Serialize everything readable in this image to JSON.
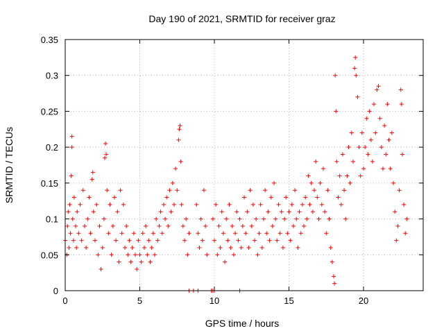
{
  "chart_data": {
    "type": "scatter",
    "title": "Day 190 of 2021, SRMTID for receiver graz",
    "xlabel": "GPS time / hours",
    "ylabel": "SRMTID / TECUs",
    "xlim": [
      0,
      24
    ],
    "ylim": [
      0,
      0.35
    ],
    "x_ticks": [
      0,
      5,
      10,
      15,
      20
    ],
    "x_tick_labels": [
      "0",
      "5",
      "10",
      "15",
      "20"
    ],
    "y_ticks": [
      0,
      0.05,
      0.1,
      0.15,
      0.2,
      0.25,
      0.3,
      0.35
    ],
    "y_tick_labels": [
      "0",
      "0.05",
      "0.1",
      "0.15",
      "0.2",
      "0.25",
      "0.3",
      "0.35"
    ],
    "grid": true,
    "marker": "+",
    "color": "#ff0000",
    "series": [
      {
        "name": "SRMTID",
        "points": [
          [
            0.0,
            0.07
          ],
          [
            0.1,
            0.05
          ],
          [
            0.15,
            0.09
          ],
          [
            0.2,
            0.11
          ],
          [
            0.25,
            0.06
          ],
          [
            0.3,
            0.12
          ],
          [
            0.35,
            0.08
          ],
          [
            0.4,
            0.16
          ],
          [
            0.45,
            0.2
          ],
          [
            0.45,
            0.215
          ],
          [
            0.5,
            0.1
          ],
          [
            0.55,
            0.07
          ],
          [
            0.6,
            0.13
          ],
          [
            0.7,
            0.09
          ],
          [
            0.75,
            0.06
          ],
          [
            0.8,
            0.11
          ],
          [
            0.9,
            0.08
          ],
          [
            1.0,
            0.12
          ],
          [
            1.1,
            0.07
          ],
          [
            1.2,
            0.14
          ],
          [
            1.3,
            0.09
          ],
          [
            1.4,
            0.06
          ],
          [
            1.5,
            0.1
          ],
          [
            1.6,
            0.13
          ],
          [
            1.7,
            0.08
          ],
          [
            1.8,
            0.155
          ],
          [
            1.85,
            0.165
          ],
          [
            1.9,
            0.11
          ],
          [
            2.0,
            0.07
          ],
          [
            2.1,
            0.12
          ],
          [
            2.2,
            0.05
          ],
          [
            2.3,
            0.09
          ],
          [
            2.4,
            0.03
          ],
          [
            2.5,
            0.06
          ],
          [
            2.6,
            0.1
          ],
          [
            2.65,
            0.185
          ],
          [
            2.7,
            0.205
          ],
          [
            2.75,
            0.19
          ],
          [
            2.8,
            0.14
          ],
          [
            2.9,
            0.08
          ],
          [
            3.0,
            0.12
          ],
          [
            3.1,
            0.05
          ],
          [
            3.2,
            0.09
          ],
          [
            3.3,
            0.13
          ],
          [
            3.4,
            0.07
          ],
          [
            3.5,
            0.11
          ],
          [
            3.6,
            0.04
          ],
          [
            3.7,
            0.14
          ],
          [
            3.8,
            0.08
          ],
          [
            3.9,
            0.12
          ],
          [
            4.0,
            0.06
          ],
          [
            4.1,
            0.09
          ],
          [
            4.2,
            0.05
          ],
          [
            4.3,
            0.07
          ],
          [
            4.4,
            0.04
          ],
          [
            4.5,
            0.06
          ],
          [
            4.6,
            0.08
          ],
          [
            4.7,
            0.05
          ],
          [
            4.8,
            0.03
          ],
          [
            4.9,
            0.07
          ],
          [
            5.0,
            0.05
          ],
          [
            5.1,
            0.04
          ],
          [
            5.2,
            0.08
          ],
          [
            5.3,
            0.06
          ],
          [
            5.4,
            0.09
          ],
          [
            5.5,
            0.05
          ],
          [
            5.6,
            0.07
          ],
          [
            5.7,
            0.04
          ],
          [
            5.8,
            0.06
          ],
          [
            5.9,
            0.08
          ],
          [
            6.0,
            0.05
          ],
          [
            6.1,
            0.1
          ],
          [
            6.2,
            0.07
          ],
          [
            6.3,
            0.09
          ],
          [
            6.4,
            0.11
          ],
          [
            6.5,
            0.08
          ],
          [
            6.6,
            0.12
          ],
          [
            6.7,
            0.1
          ],
          [
            6.8,
            0.13
          ],
          [
            6.9,
            0.09
          ],
          [
            7.0,
            0.14
          ],
          [
            7.1,
            0.11
          ],
          [
            7.2,
            0.15
          ],
          [
            7.3,
            0.12
          ],
          [
            7.4,
            0.17
          ],
          [
            7.5,
            0.14
          ],
          [
            7.6,
            0.21
          ],
          [
            7.65,
            0.225
          ],
          [
            7.7,
            0.23
          ],
          [
            7.75,
            0.18
          ],
          [
            7.8,
            0.12
          ],
          [
            7.9,
            0.09
          ],
          [
            8.0,
            0.07
          ],
          [
            8.1,
            0.1
          ],
          [
            8.2,
            0.05
          ],
          [
            8.3,
            0.08
          ],
          [
            8.8,
            0.12
          ],
          [
            8.9,
            0.08
          ],
          [
            9.0,
            0.06
          ],
          [
            9.1,
            0.1
          ],
          [
            9.2,
            0.07
          ],
          [
            9.3,
            0.14
          ],
          [
            9.4,
            0.09
          ],
          [
            9.5,
            0.05
          ],
          [
            9.9,
            0.1
          ],
          [
            10.0,
            0.07
          ],
          [
            10.1,
            0.12
          ],
          [
            10.2,
            0.05
          ],
          [
            10.3,
            0.09
          ],
          [
            10.4,
            0.06
          ],
          [
            10.5,
            0.11
          ],
          [
            10.6,
            0.08
          ],
          [
            10.7,
            0.04
          ],
          [
            10.8,
            0.1
          ],
          [
            10.9,
            0.07
          ],
          [
            11.0,
            0.12
          ],
          [
            11.1,
            0.06
          ],
          [
            11.2,
            0.09
          ],
          [
            11.3,
            0.05
          ],
          [
            11.4,
            0.08
          ],
          [
            11.5,
            0.11
          ],
          [
            11.6,
            0.07
          ],
          [
            11.7,
            0.1
          ],
          [
            11.8,
            0.06
          ],
          [
            11.9,
            0.09
          ],
          [
            12.0,
            0.13
          ],
          [
            12.1,
            0.08
          ],
          [
            12.2,
            0.11
          ],
          [
            12.3,
            0.06
          ],
          [
            12.4,
            0.14
          ],
          [
            12.5,
            0.09
          ],
          [
            12.6,
            0.12
          ],
          [
            12.7,
            0.07
          ],
          [
            12.8,
            0.1
          ],
          [
            12.9,
            0.05
          ],
          [
            13.0,
            0.08
          ],
          [
            13.1,
            0.12
          ],
          [
            13.2,
            0.06
          ],
          [
            13.3,
            0.1
          ],
          [
            13.4,
            0.14
          ],
          [
            13.5,
            0.08
          ],
          [
            13.6,
            0.11
          ],
          [
            13.7,
            0.07
          ],
          [
            13.8,
            0.13
          ],
          [
            13.9,
            0.09
          ],
          [
            14.0,
            0.15
          ],
          [
            14.1,
            0.1
          ],
          [
            14.2,
            0.07
          ],
          [
            14.3,
            0.12
          ],
          [
            14.4,
            0.08
          ],
          [
            14.5,
            0.11
          ],
          [
            14.6,
            0.06
          ],
          [
            14.7,
            0.1
          ],
          [
            14.8,
            0.13
          ],
          [
            14.9,
            0.08
          ],
          [
            15.0,
            0.11
          ],
          [
            15.1,
            0.07
          ],
          [
            15.2,
            0.12
          ],
          [
            15.3,
            0.09
          ],
          [
            15.4,
            0.14
          ],
          [
            15.5,
            0.1
          ],
          [
            15.6,
            0.06
          ],
          [
            15.7,
            0.11
          ],
          [
            15.8,
            0.08
          ],
          [
            15.9,
            0.12
          ],
          [
            16.0,
            0.09
          ],
          [
            16.1,
            0.13
          ],
          [
            16.2,
            0.1
          ],
          [
            16.3,
            0.16
          ],
          [
            16.4,
            0.12
          ],
          [
            16.5,
            0.15
          ],
          [
            16.6,
            0.11
          ],
          [
            16.7,
            0.14
          ],
          [
            16.8,
            0.18
          ],
          [
            16.9,
            0.13
          ],
          [
            17.0,
            0.1
          ],
          [
            17.1,
            0.15
          ],
          [
            17.2,
            0.12
          ],
          [
            17.3,
            0.17
          ],
          [
            17.4,
            0.11
          ],
          [
            17.5,
            0.08
          ],
          [
            17.6,
            0.14
          ],
          [
            17.7,
            0.1
          ],
          [
            17.8,
            0.06
          ],
          [
            17.9,
            0.04
          ],
          [
            18.0,
            0.02
          ],
          [
            18.05,
            0.01
          ],
          [
            18.1,
            0.3
          ],
          [
            18.15,
            0.25
          ],
          [
            18.2,
            0.18
          ],
          [
            18.3,
            0.13
          ],
          [
            18.4,
            0.16
          ],
          [
            18.5,
            0.12
          ],
          [
            18.6,
            0.19
          ],
          [
            18.7,
            0.14
          ],
          [
            18.8,
            0.1
          ],
          [
            18.9,
            0.16
          ],
          [
            19.0,
            0.2
          ],
          [
            19.1,
            0.15
          ],
          [
            19.2,
            0.22
          ],
          [
            19.3,
            0.18
          ],
          [
            19.4,
            0.31
          ],
          [
            19.45,
            0.325
          ],
          [
            19.5,
            0.3
          ],
          [
            19.6,
            0.27
          ],
          [
            19.7,
            0.2
          ],
          [
            19.8,
            0.16
          ],
          [
            19.9,
            0.22
          ],
          [
            20.0,
            0.17
          ],
          [
            20.1,
            0.2
          ],
          [
            20.2,
            0.24
          ],
          [
            20.3,
            0.19
          ],
          [
            20.4,
            0.25
          ],
          [
            20.5,
            0.21
          ],
          [
            20.6,
            0.18
          ],
          [
            20.7,
            0.26
          ],
          [
            20.8,
            0.22
          ],
          [
            20.9,
            0.28
          ],
          [
            21.0,
            0.285
          ],
          [
            21.1,
            0.24
          ],
          [
            21.2,
            0.2
          ],
          [
            21.3,
            0.17
          ],
          [
            21.4,
            0.23
          ],
          [
            21.5,
            0.19
          ],
          [
            21.6,
            0.26
          ],
          [
            21.7,
            0.21
          ],
          [
            21.8,
            0.17
          ],
          [
            21.9,
            0.22
          ],
          [
            22.0,
            0.15
          ],
          [
            22.1,
            0.11
          ],
          [
            22.2,
            0.07
          ],
          [
            22.3,
            0.09
          ],
          [
            22.4,
            0.14
          ],
          [
            22.5,
            0.28
          ],
          [
            22.55,
            0.26
          ],
          [
            22.6,
            0.19
          ],
          [
            22.7,
            0.12
          ],
          [
            22.8,
            0.08
          ],
          [
            22.9,
            0.1
          ]
        ]
      }
    ],
    "zero_points_x": [
      8.3,
      8.6,
      8.9,
      9.8,
      9.9,
      10.0,
      11.7
    ]
  }
}
